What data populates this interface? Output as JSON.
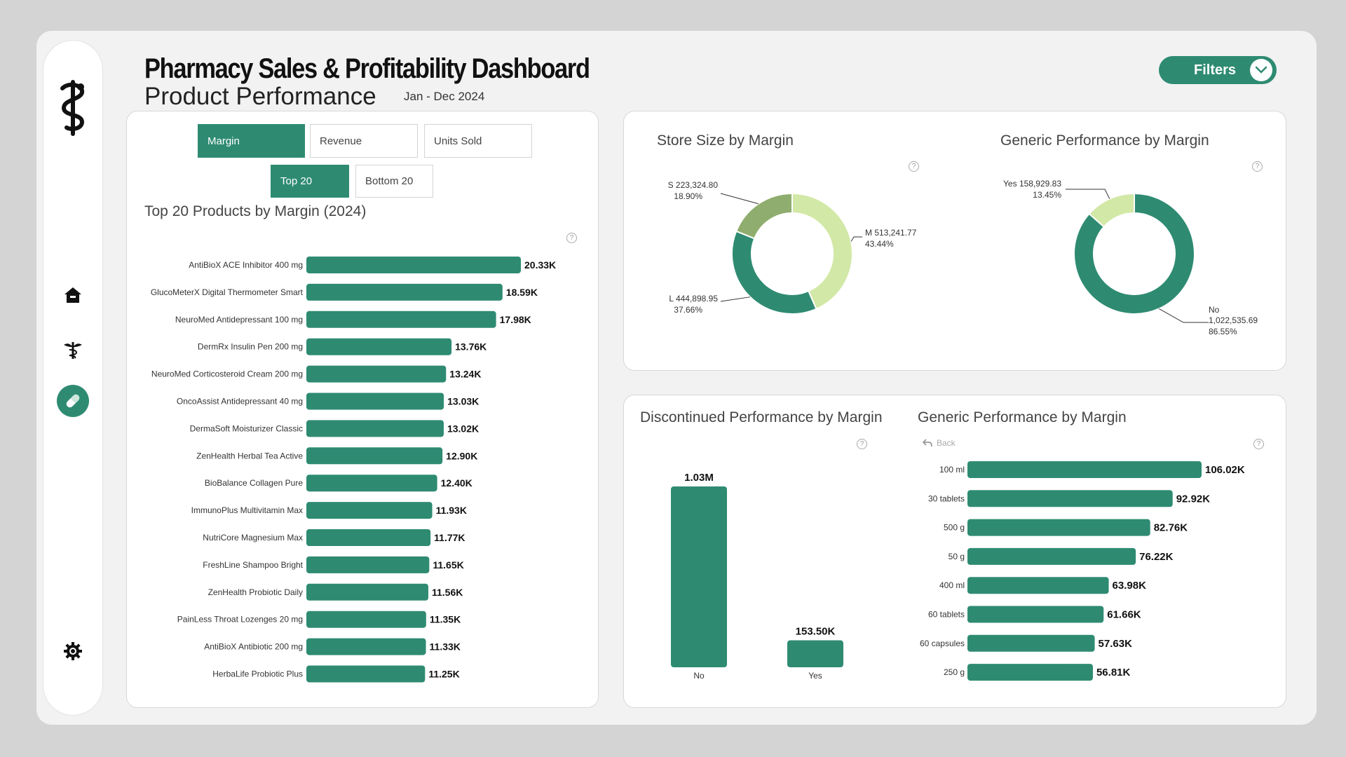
{
  "header": {
    "title": "Pharmacy Sales & Profitability Dashboard",
    "subtitle": "Product Performance",
    "period": "Jan - Dec 2024",
    "filters_label": "Filters"
  },
  "sidebar": {
    "items": [
      {
        "name": "logo",
        "icon": "caduceus-icon"
      },
      {
        "name": "home",
        "icon": "home-icon"
      },
      {
        "name": "medical",
        "icon": "caduceus-icon"
      },
      {
        "name": "products",
        "icon": "pill-icon"
      },
      {
        "name": "settings",
        "icon": "gear-icon"
      }
    ]
  },
  "left_panel": {
    "metric_buttons": [
      "Margin",
      "Revenue",
      "Units Sold"
    ],
    "rank_buttons": [
      "Top 20",
      "Bottom 20"
    ],
    "chart_title": "Top 20 Products by Margin (2024)"
  },
  "store_size": {
    "title": "Store Size by Margin"
  },
  "generic_donut": {
    "title": "Generic Performance by Margin"
  },
  "discontinued": {
    "title": "Discontinued Performance by Margin"
  },
  "generic_bars": {
    "title": "Generic Performance by Margin",
    "back_label": "Back"
  },
  "colors": {
    "accent": "#2e8b72",
    "light": "#d2e8a6",
    "olive": "#8fad6e",
    "bg": "#f2f2f2"
  },
  "chart_data": [
    {
      "id": "top_products",
      "type": "bar",
      "orientation": "horizontal",
      "title": "Top 20 Products by Margin (2024)",
      "categories": [
        "AntiBioX ACE Inhibitor 400 mg",
        "GlucoMeterX Digital Thermometer Smart",
        "NeuroMed Antidepressant 100 mg",
        "DermRx Insulin Pen 200 mg",
        "NeuroMed Corticosteroid Cream 200 mg",
        "OncoAssist Antidepressant 40 mg",
        "DermaSoft Moisturizer Classic",
        "ZenHealth Herbal Tea Active",
        "BioBalance Collagen Pure",
        "ImmunoPlus Multivitamin Max",
        "NutriCore Magnesium Max",
        "FreshLine Shampoo Bright",
        "ZenHealth Probiotic Daily",
        "PainLess Throat Lozenges 20 mg",
        "AntiBioX Antibiotic 200 mg",
        "HerbaLife Probiotic Plus"
      ],
      "values": [
        20.33,
        18.59,
        17.98,
        13.76,
        13.24,
        13.03,
        13.02,
        12.9,
        12.4,
        11.93,
        11.77,
        11.65,
        11.56,
        11.35,
        11.33,
        11.25
      ],
      "labels": [
        "20.33K",
        "18.59K",
        "17.98K",
        "13.76K",
        "13.24K",
        "13.03K",
        "13.02K",
        "12.90K",
        "12.40K",
        "11.93K",
        "11.77K",
        "11.65K",
        "11.56K",
        "11.35K",
        "11.33K",
        "11.25K"
      ],
      "unit": "K"
    },
    {
      "id": "store_size",
      "type": "pie",
      "title": "Store Size by Margin",
      "slices": [
        {
          "label": "M",
          "value": 513241.77,
          "display": "M 513,241.77",
          "pct": "43.44%",
          "color": "#d2e8a6"
        },
        {
          "label": "L",
          "value": 444898.95,
          "display": "L 444,898.95",
          "pct": "37.66%",
          "color": "#2e8b72"
        },
        {
          "label": "S",
          "value": 223324.8,
          "display": "S 223,324.80",
          "pct": "18.90%",
          "color": "#8fad6e"
        }
      ]
    },
    {
      "id": "generic_donut",
      "type": "pie",
      "title": "Generic Performance by Margin",
      "slices": [
        {
          "label": "No",
          "value": 1022535.69,
          "display_label": "No",
          "display_value": "1,022,535.69",
          "pct": "86.55%",
          "color": "#2e8b72"
        },
        {
          "label": "Yes",
          "value": 158929.83,
          "display": "Yes 158,929.83",
          "pct": "13.45%",
          "color": "#d2e8a6"
        }
      ]
    },
    {
      "id": "discontinued",
      "type": "bar",
      "title": "Discontinued Performance by Margin",
      "categories": [
        "No",
        "Yes"
      ],
      "values": [
        1030000,
        153500
      ],
      "labels": [
        "1.03M",
        "153.50K"
      ]
    },
    {
      "id": "generic_bars",
      "type": "bar",
      "orientation": "horizontal",
      "title": "Generic Performance by Margin",
      "categories": [
        "100 ml",
        "30 tablets",
        "500 g",
        "50 g",
        "400 ml",
        "60 tablets",
        "60 capsules",
        "250 g"
      ],
      "values": [
        106.02,
        92.92,
        82.76,
        76.22,
        63.98,
        61.66,
        57.63,
        56.81
      ],
      "labels": [
        "106.02K",
        "92.92K",
        "82.76K",
        "76.22K",
        "63.98K",
        "61.66K",
        "57.63K",
        "56.81K"
      ],
      "unit": "K"
    }
  ]
}
